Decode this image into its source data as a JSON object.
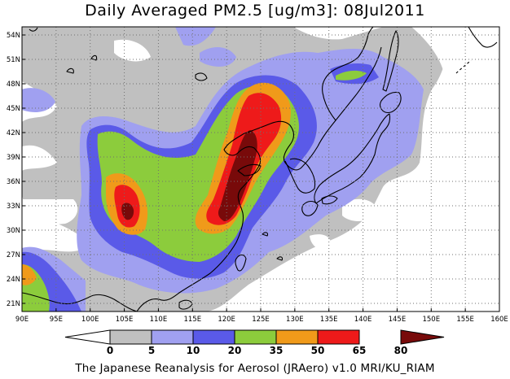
{
  "title": "Daily Averaged PM2.5 [ug/m3]: 08Jul2011",
  "credit": "The Japanese Reanalysis for Aerosol (JRAero) v1.0 MRI/KU_RIAM",
  "map": {
    "lon_range": [
      90,
      160
    ],
    "lat_range": [
      20,
      55
    ],
    "lon_labels": [
      "90E",
      "95E",
      "100E",
      "105E",
      "110E",
      "115E",
      "120E",
      "125E",
      "130E",
      "135E",
      "140E",
      "145E",
      "150E",
      "155E",
      "160E"
    ],
    "lat_labels": [
      "21N",
      "24N",
      "27N",
      "30N",
      "33N",
      "36N",
      "39N",
      "42N",
      "45N",
      "48N",
      "51N",
      "54N"
    ],
    "lon_ticks": [
      90,
      95,
      100,
      105,
      110,
      115,
      120,
      125,
      130,
      135,
      140,
      145,
      150,
      155,
      160
    ],
    "lat_ticks": [
      21,
      24,
      27,
      30,
      33,
      36,
      39,
      42,
      45,
      48,
      51,
      54
    ],
    "gridlines": "dotted"
  },
  "colorbar": {
    "levels": [
      "0",
      "5",
      "10",
      "20",
      "35",
      "50",
      "65",
      "80"
    ],
    "colors": {
      "white": "#ffffff",
      "gray": "#c0c0c0",
      "lavender": "#a0a0f0",
      "blue": "#5a5ae8",
      "green": "#8ccc3c",
      "orange": "#f09a1a",
      "red": "#ee1a1a",
      "darkred": "#780a0a"
    },
    "bins": [
      "gray",
      "lavender",
      "blue",
      "green",
      "orange",
      "red",
      "darkred"
    ]
  }
}
